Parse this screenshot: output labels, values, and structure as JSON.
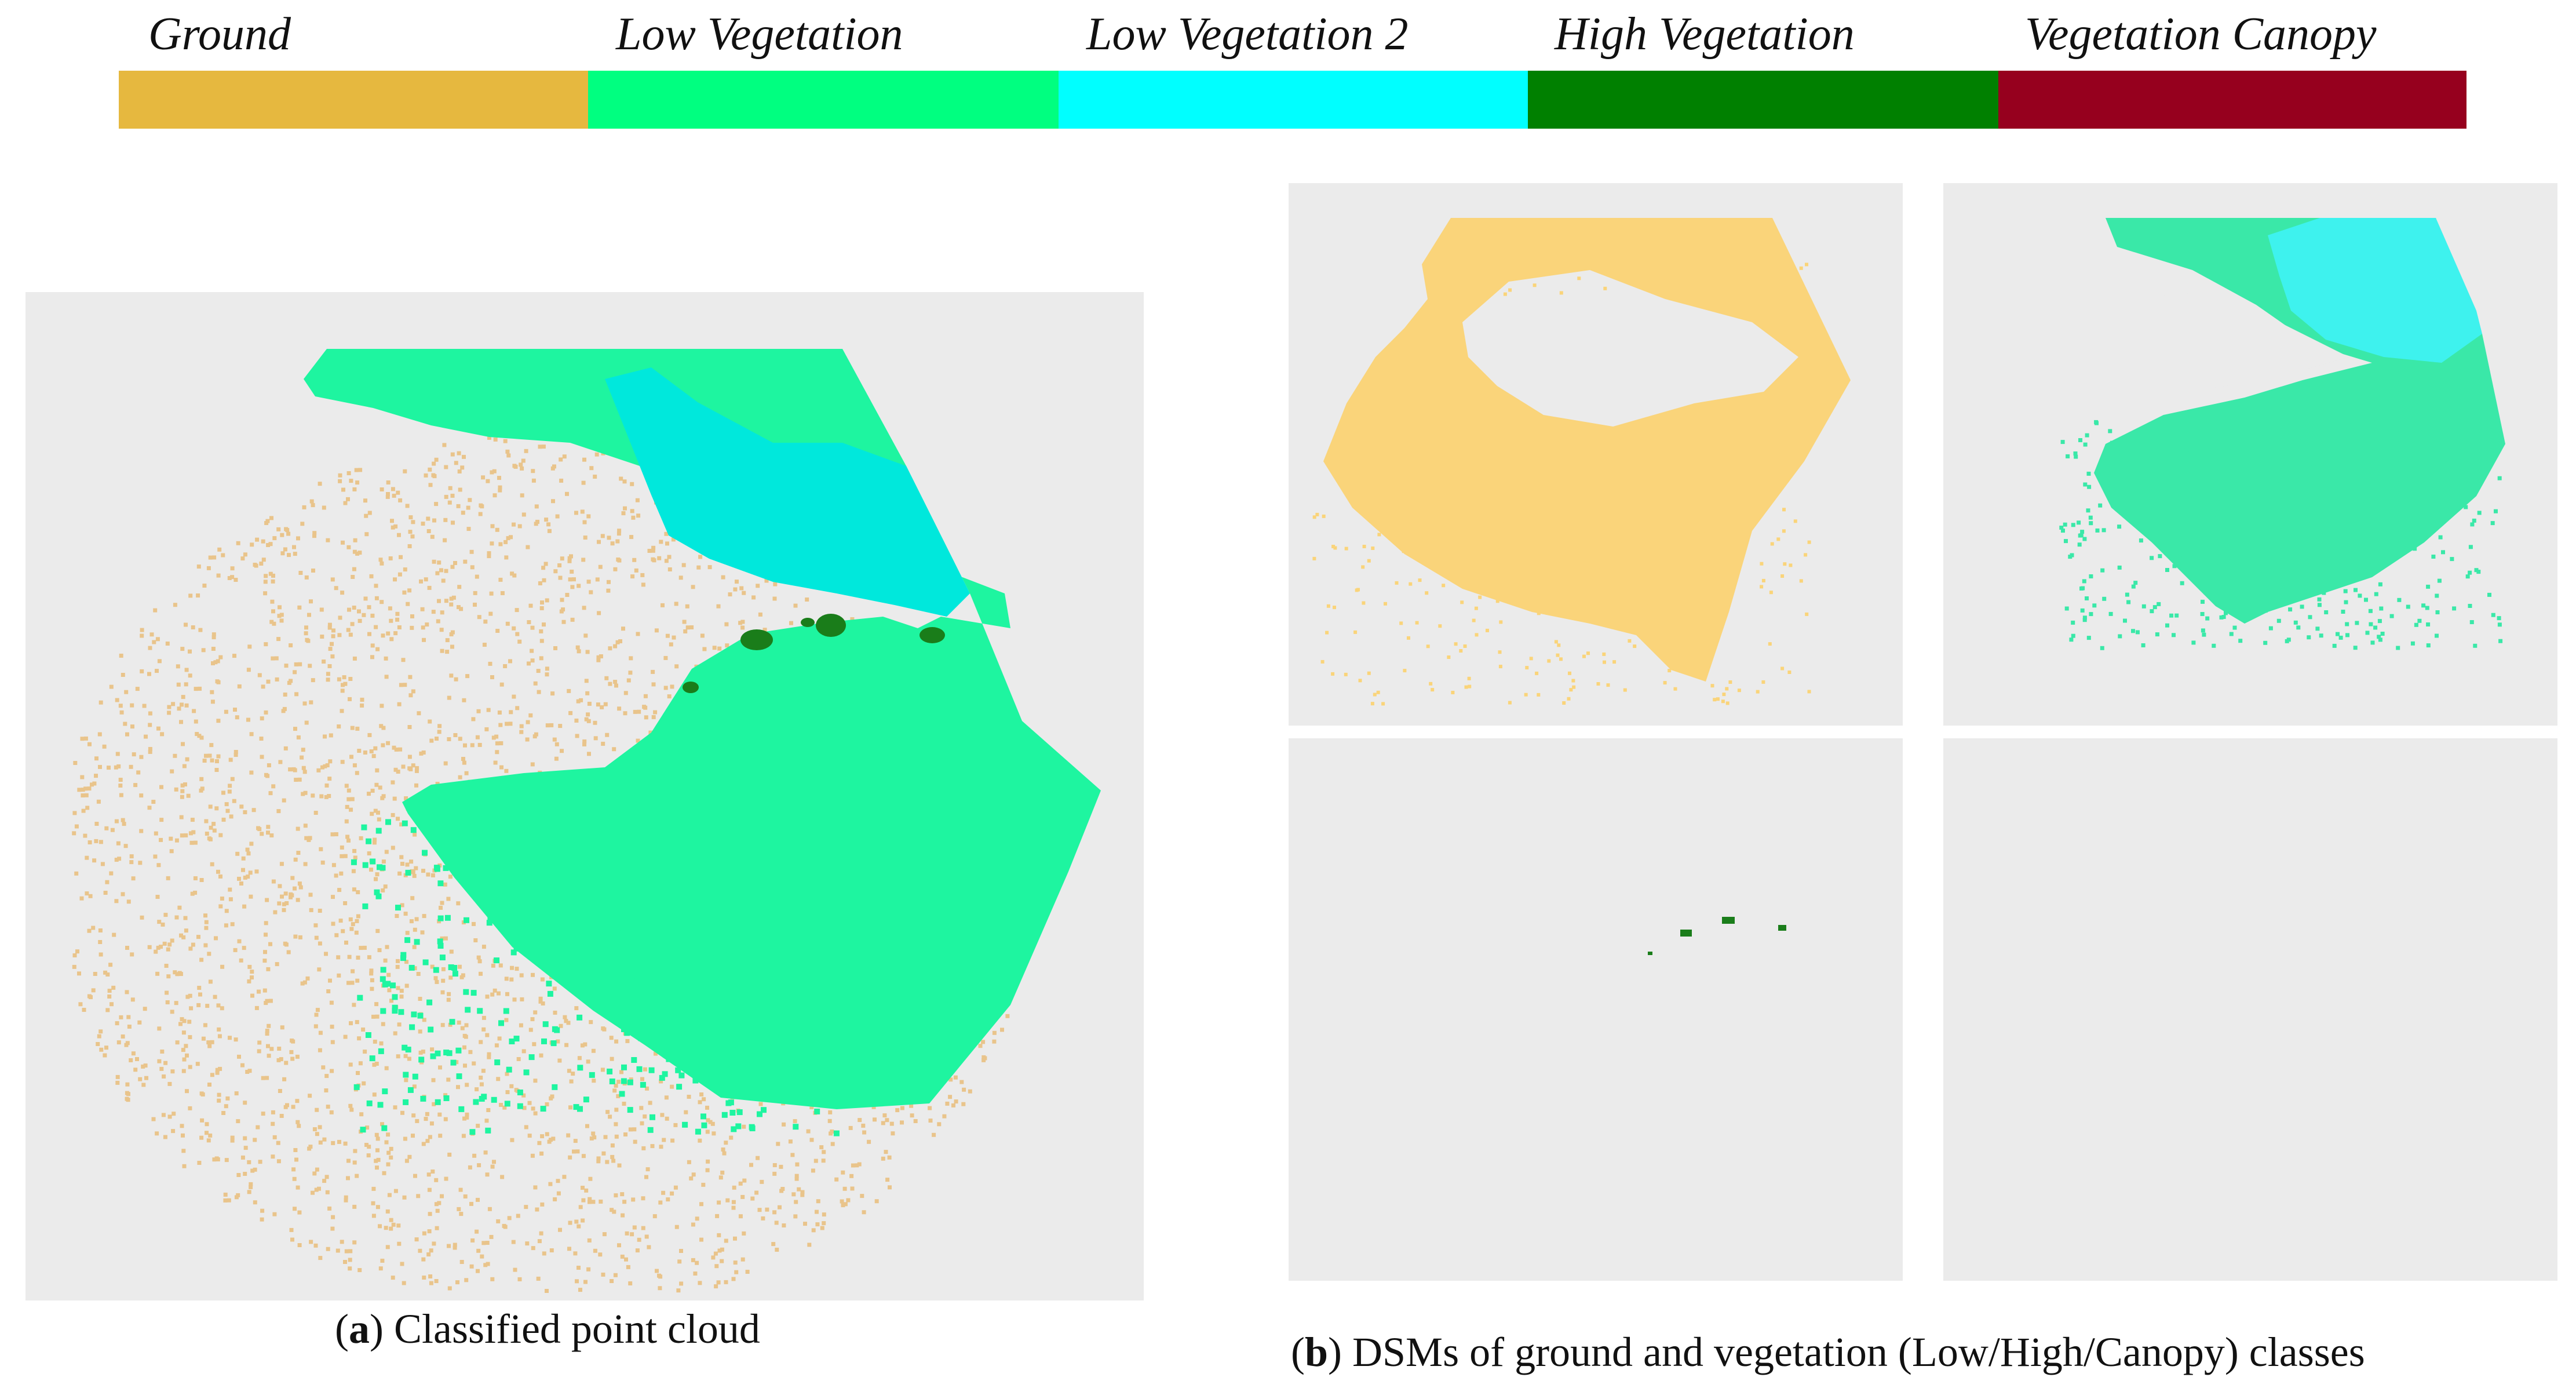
{
  "legend": {
    "items": [
      {
        "label": "Ground",
        "color": "#e6b83f"
      },
      {
        "label": "Low Vegetation",
        "color": "#00ff80"
      },
      {
        "label": "Low Vegetation 2",
        "color": "#00ffff"
      },
      {
        "label": "High Vegetation",
        "color": "#008000"
      },
      {
        "label": "Vegetation Canopy",
        "color": "#96001e"
      }
    ]
  },
  "captions": {
    "a_letter": "a",
    "a_text": "Classified point cloud",
    "b_letter": "b",
    "b_text": "DSMs of ground and vegetation (Low/High/Canopy) classes"
  },
  "colors": {
    "panel_bg": "#ebebeb",
    "ground_points": "#e9c48b",
    "low_veg_points": "#1ef5a0",
    "low_veg2_points": "#00e8dc",
    "high_veg_points": "#1a7d1a",
    "dsm_ground": "#fad47a",
    "dsm_lowveg": "#3ae8a8",
    "dsm_lowveg2": "#3ef2ee"
  }
}
